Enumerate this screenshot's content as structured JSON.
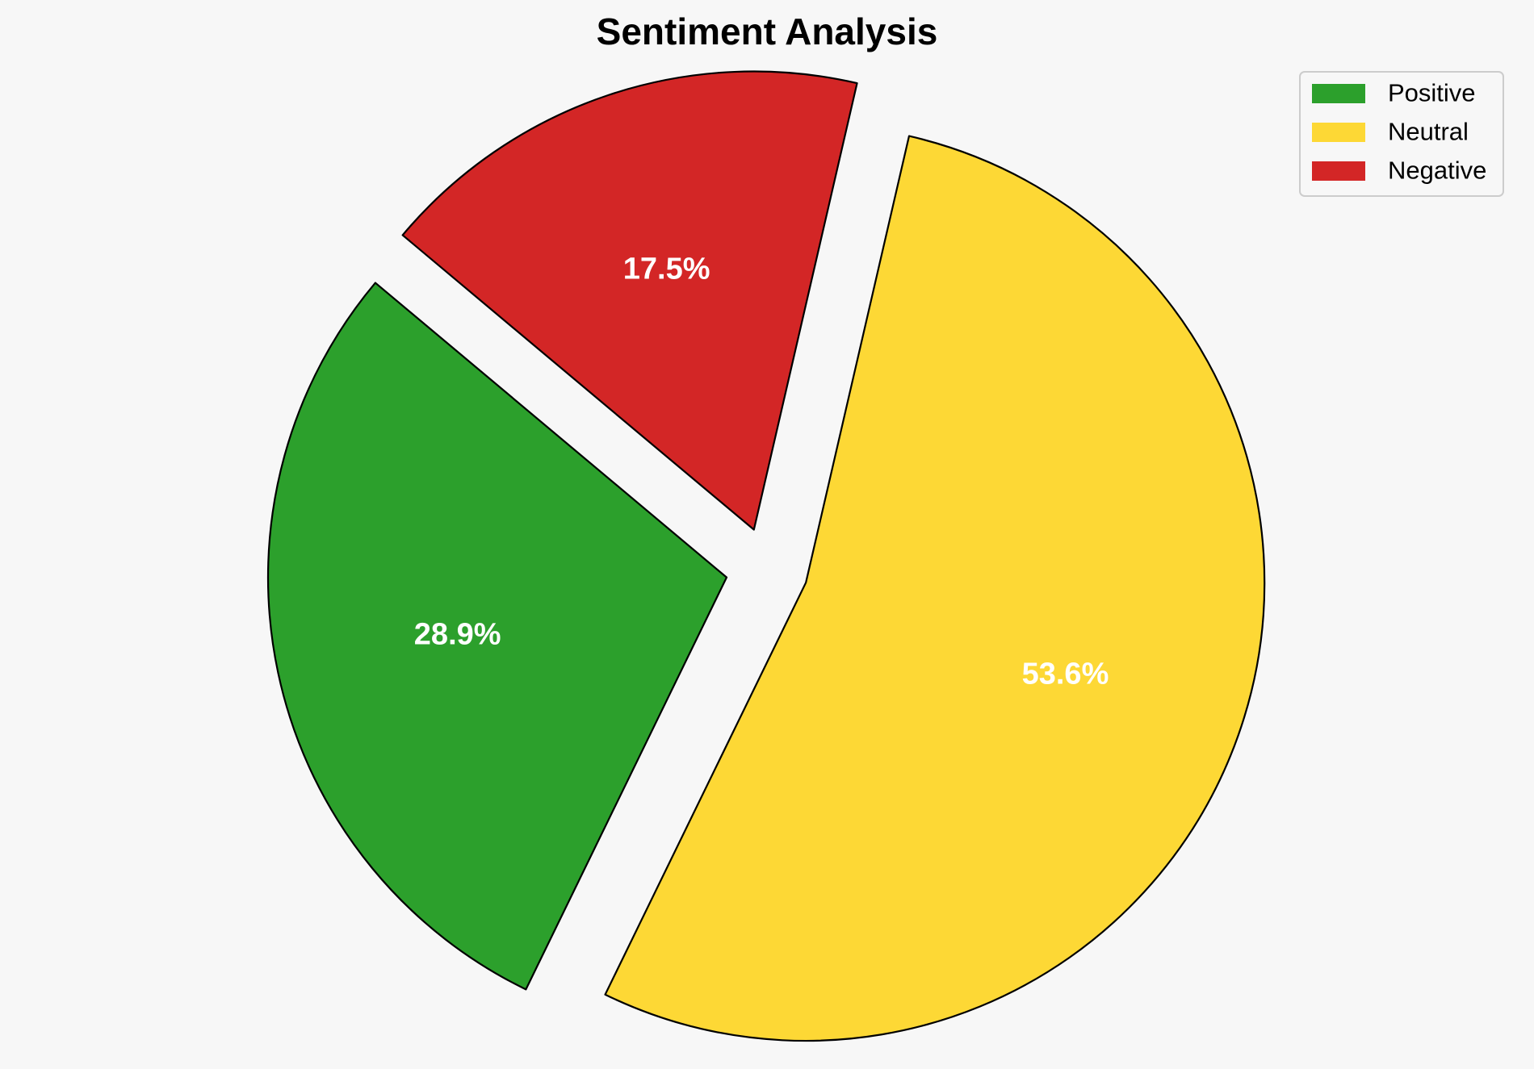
{
  "chart_data": {
    "type": "pie",
    "title": "Sentiment Analysis",
    "categories": [
      "Positive",
      "Neutral",
      "Negative"
    ],
    "values": [
      28.9,
      53.6,
      17.5
    ],
    "value_labels": [
      "28.9%",
      "53.6%",
      "17.5%"
    ],
    "colors": [
      "#2ca02c",
      "#fdd835",
      "#d32626"
    ],
    "exploded": true,
    "legend": {
      "placement": "top-right",
      "entries": [
        "Positive",
        "Neutral",
        "Negative"
      ]
    }
  }
}
